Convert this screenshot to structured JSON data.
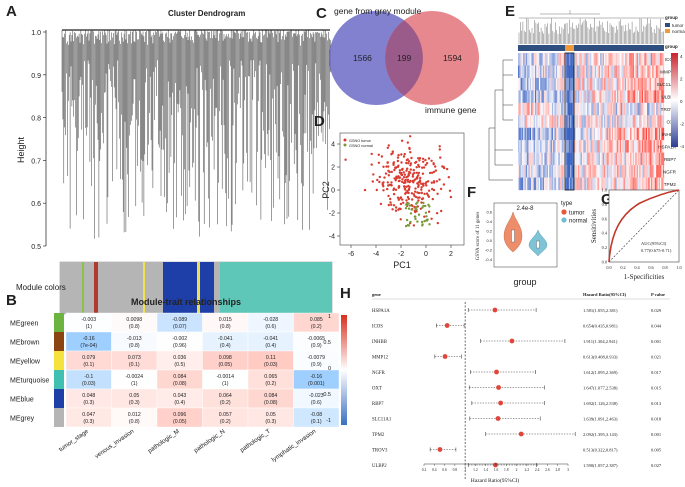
{
  "panel_labels": {
    "a": "A",
    "b": "B",
    "c": "C",
    "d": "D",
    "e": "E",
    "f": "F",
    "g": "G",
    "h": "H"
  },
  "panel_a": {
    "title": "Cluster Dendrogram",
    "ylabel": "Height",
    "yticks": [
      "0.5",
      "0.6",
      "0.7",
      "0.8",
      "0.9",
      "1.0"
    ],
    "colorbar_label": "Module colors",
    "module_bands": [
      "#b5b5b5",
      "#8bc34a",
      "#b5b5b5",
      "#b03a2e",
      "#b5b5b5",
      "#f2e34c",
      "#b5b5b5",
      "#1f3fa8",
      "#f0e050",
      "#1f3fa8",
      "#b5b5b5",
      "#5fc7b7"
    ]
  },
  "panel_b": {
    "title": "Module-trait relationships",
    "rows": [
      "MEgreen",
      "MEbrown",
      "MEyellow",
      "MEturquoise",
      "MEblue",
      "MEgrey"
    ],
    "row_colors": [
      "#6cb33f",
      "#8b4513",
      "#f5e23c",
      "#40c0b0",
      "#1f3fa8",
      "#b5b5b5"
    ],
    "cols": [
      "tumor_stage",
      "venous_invasion",
      "pathologic_M",
      "pathologic_N",
      "pathologic_T",
      "lymphatic_invasion"
    ],
    "cells": [
      [
        [
          "-0.003",
          "(1)"
        ],
        [
          "0.0098",
          "(0.8)"
        ],
        [
          "-0.089",
          "(0.07)"
        ],
        [
          "0.015",
          "(0.8)"
        ],
        [
          "-0.028",
          "(0.6)"
        ],
        [
          "0.085",
          "(0.2)"
        ]
      ],
      [
        [
          "-0.16",
          "(7e-04)"
        ],
        [
          "-0.013",
          "(0.8)"
        ],
        [
          "-0.002",
          "(0.96)"
        ],
        [
          "-0.041",
          "(0.4)"
        ],
        [
          "-0.041",
          "(0.4)"
        ],
        [
          "-0.0065",
          "(0.9)"
        ]
      ],
      [
        [
          "0.079",
          "(0.1)"
        ],
        [
          "0.073",
          "(0.1)"
        ],
        [
          "0.036",
          "(0.5)"
        ],
        [
          "0.098",
          "(0.05)"
        ],
        [
          "0.11",
          "(0.03)"
        ],
        [
          "-0.0079",
          "(0.9)"
        ]
      ],
      [
        [
          "-0.1",
          "(0.03)"
        ],
        [
          "-0.0024",
          "(1)"
        ],
        [
          "0.084",
          "(0.08)"
        ],
        [
          "-0.0014",
          "(1)"
        ],
        [
          "0.065",
          "(0.2)"
        ],
        [
          "-0.16",
          "(0.001)"
        ]
      ],
      [
        [
          "0.048",
          "(0.3)"
        ],
        [
          "0.05",
          "(0.3)"
        ],
        [
          "0.043",
          "(0.4)"
        ],
        [
          "0.064",
          "(0.2)"
        ],
        [
          "0.084",
          "(0.08)"
        ],
        [
          "-0.023",
          "(0.6)"
        ]
      ],
      [
        [
          "0.047",
          "(0.3)"
        ],
        [
          "0.012",
          "(0.8)"
        ],
        [
          "0.096",
          "(0.05)"
        ],
        [
          "0.057",
          "(0.2)"
        ],
        [
          "0.05",
          "(0.3)"
        ],
        [
          "-0.08",
          "(0.1)"
        ]
      ]
    ],
    "values": [
      [
        -0.003,
        0.0098,
        -0.089,
        0.015,
        -0.028,
        0.085
      ],
      [
        -0.16,
        -0.013,
        -0.002,
        -0.041,
        -0.041,
        -0.0065
      ],
      [
        0.079,
        0.073,
        0.036,
        0.098,
        0.11,
        -0.0079
      ],
      [
        -0.1,
        -0.0024,
        0.084,
        -0.0014,
        0.065,
        -0.16
      ],
      [
        0.048,
        0.05,
        0.043,
        0.064,
        0.084,
        -0.023
      ],
      [
        0.047,
        0.012,
        0.096,
        0.057,
        0.05,
        -0.08
      ]
    ],
    "scale_ticks": [
      "1",
      "0.5",
      "0",
      "-0.5",
      "-1"
    ]
  },
  "panel_c": {
    "left_label": "gene from grey module",
    "right_label": "immune gene",
    "left_only": "1566",
    "overlap": "199",
    "right_only": "1594"
  },
  "panel_d": {
    "xlabel": "PC1",
    "ylabel": "PC2",
    "legend": [
      "GSNO tumor",
      "GSNO normal"
    ],
    "xticks": [
      "-6",
      "-4",
      "-2",
      "0",
      "2"
    ],
    "yticks": [
      "4",
      "2",
      "0",
      "-2",
      "-4"
    ]
  },
  "panel_e": {
    "genes": [
      "ICOS",
      "MMP12",
      "SLC11A1",
      "ULBP2",
      "TROV3",
      "OXT",
      "INHBB",
      "HSPA1A",
      "RBP7",
      "NGFR",
      "TPM2"
    ],
    "legend_title": "group",
    "legend_items": [
      "tumor",
      "normal"
    ],
    "legend_title2": "group",
    "scale_ticks": [
      "4",
      "2",
      "0",
      "-2",
      "-4"
    ]
  },
  "panel_f": {
    "title": "2.4e-8",
    "ylabel": "GSVA score of 11 genes",
    "xlabel": "group",
    "legend_title": "type",
    "legend_items": [
      "tumor",
      "normal"
    ],
    "yticks": [
      "0.6",
      "0.4",
      "0.2",
      "0.0",
      "-0.2",
      "-0.4"
    ]
  },
  "panel_g": {
    "ylabel": "Sensitivities",
    "xlabel": "1-Specificities",
    "auc_label": "AUC(95%CI)",
    "auc_value": "0.77(0.675-0.71)",
    "ticks": [
      "0.0",
      "0.2",
      "0.4",
      "0.6",
      "0.8",
      "1.0"
    ]
  },
  "panel_h": {
    "col_gene": "gene",
    "col_hr": "Hazard Ratio(95%CI)",
    "col_p": "P value",
    "xlabel": "Hazard Ratio(95%CI)",
    "xticks": [
      "0.2",
      "0.4",
      "0.6",
      "0.8",
      "1",
      "1.2",
      "1.4",
      "1.6",
      "1.8",
      "2",
      "2.2",
      "2.4",
      "2.6",
      "2.8",
      "3"
    ],
    "rows": [
      {
        "gene": "HSPA1A",
        "hr_text": "1.581(1.055,2.381)",
        "p": "0.029",
        "hr": 1.58,
        "lo": 1.06,
        "hi": 2.38
      },
      {
        "gene": "ICOS",
        "hr_text": "0.654(0.435,0.981)",
        "p": "0.044",
        "hr": 0.65,
        "lo": 0.44,
        "hi": 0.98
      },
      {
        "gene": "INHBB",
        "hr_text": "1.911(1.304,2.941)",
        "p": "0.001",
        "hr": 1.91,
        "lo": 1.3,
        "hi": 2.94
      },
      {
        "gene": "MMP12",
        "hr_text": "0.613(0.408,0.933)",
        "p": "0.021",
        "hr": 0.61,
        "lo": 0.41,
        "hi": 0.93
      },
      {
        "gene": "NGFR",
        "hr_text": "1.612(1.095,2.369)",
        "p": "0.017",
        "hr": 1.61,
        "lo": 1.1,
        "hi": 2.37
      },
      {
        "gene": "OXT",
        "hr_text": "1.647(1.077,2.538)",
        "p": "0.015",
        "hr": 1.65,
        "lo": 1.08,
        "hi": 2.54
      },
      {
        "gene": "RBP7",
        "hr_text": "1.692(1.126,2.538)",
        "p": "0.013",
        "hr": 1.69,
        "lo": 1.13,
        "hi": 2.54
      },
      {
        "gene": "SLC11A1",
        "hr_text": "1.639(1.091,2.463)",
        "p": "0.018",
        "hr": 1.64,
        "lo": 1.09,
        "hi": 2.46
      },
      {
        "gene": "TPM2",
        "hr_text": "2.092(1.395,3.143)",
        "p": "0.001",
        "hr": 2.09,
        "lo": 1.4,
        "hi": 3.14
      },
      {
        "gene": "TROV3",
        "hr_text": "0.513(0.322,0.817)",
        "p": "0.005",
        "hr": 0.51,
        "lo": 0.32,
        "hi": 0.82
      },
      {
        "gene": "ULBP2",
        "hr_text": "1.590(1.057,2.387)",
        "p": "0.027",
        "hr": 1.59,
        "lo": 1.06,
        "hi": 2.39
      }
    ]
  }
}
